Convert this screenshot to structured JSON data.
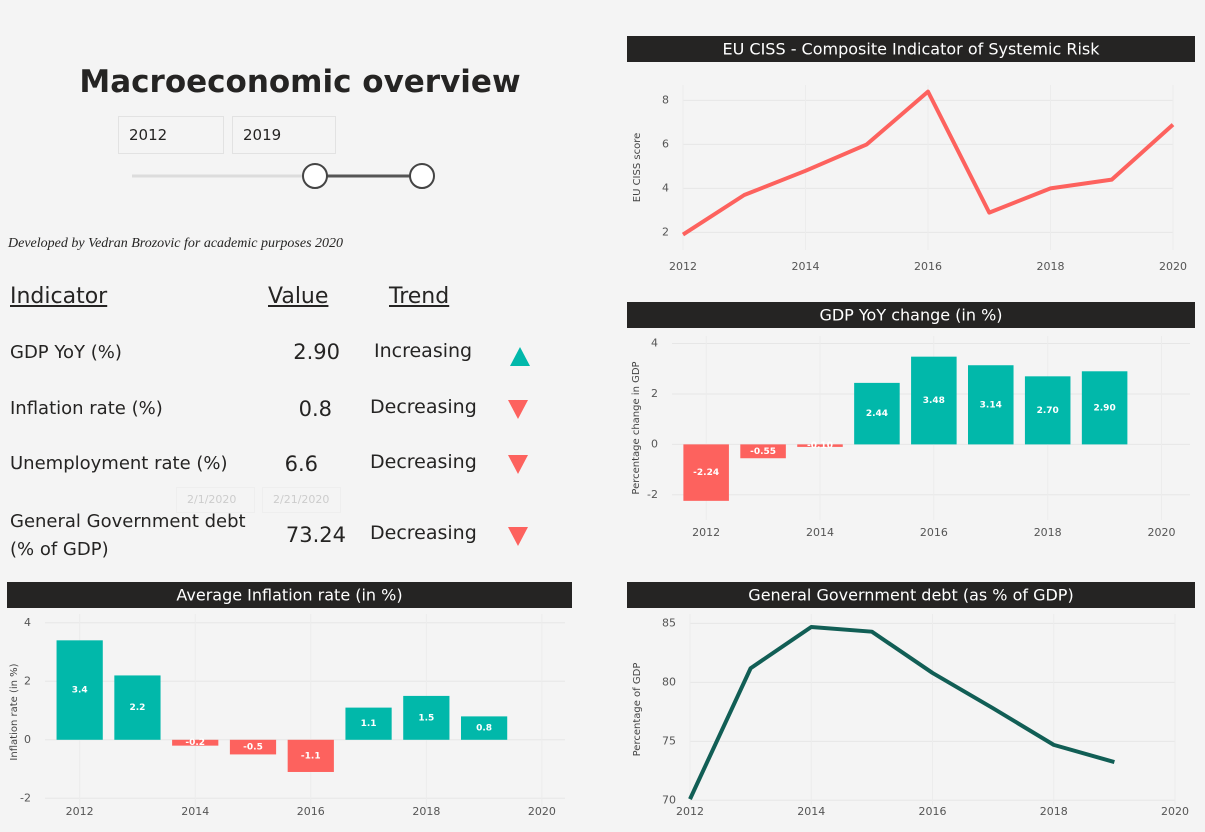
{
  "header": {
    "title": "Macroeconomic overview"
  },
  "slicer": {
    "start": "2012",
    "end": "2019"
  },
  "credit": "Developed by Vedran Brozovic for academic purposes 2020",
  "date_inputs": [
    "2/1/2020",
    "2/21/2020"
  ],
  "table": {
    "headers": [
      "Indicator",
      "Value",
      "Trend"
    ],
    "rows": [
      [
        "GDP YoY (%)",
        "2.90",
        "Increasing"
      ],
      [
        "Inflation rate (%)",
        "0.8",
        "Decreasing"
      ],
      [
        "Unemployment rate (%)",
        "6.6",
        "Decreasing"
      ],
      [
        "General Government debt (% of GDP)",
        "73.24",
        "Decreasing"
      ]
    ]
  },
  "chart_data": [
    {
      "type": "line",
      "title": "EU CISS - Composite Indicator of Systemic Risk",
      "y_label": "EU CISS score",
      "x": [
        2012,
        2013,
        2014,
        2015,
        2016,
        2017,
        2018,
        2019,
        2020
      ],
      "values": [
        1.9,
        3.7,
        4.8,
        6.0,
        8.4,
        2.9,
        4.0,
        4.4,
        6.9
      ],
      "color": "#fd625e",
      "xlim": [
        2012,
        2020
      ],
      "xticks": [
        2012,
        2014,
        2016,
        2018,
        2020
      ],
      "ylim": [
        1.2,
        8.7
      ],
      "yticks": [
        2,
        4,
        6,
        8
      ],
      "grid": true
    },
    {
      "type": "bar",
      "title": "GDP YoY change (in %)",
      "y_label": "Percentage change in GDP",
      "x": [
        2012,
        2013,
        2014,
        2015,
        2016,
        2017,
        2018,
        2019
      ],
      "values": [
        -2.24,
        -0.55,
        -0.1,
        2.44,
        3.48,
        3.14,
        2.7,
        2.9
      ],
      "value_labels": [
        "-2.24",
        "-0.55",
        "-0.10",
        "2.44",
        "3.48",
        "3.14",
        "2.70",
        "2.90"
      ],
      "positive_color": "#01b8aa",
      "negative_color": "#fd625e",
      "xlim": [
        2011.4,
        2020.5
      ],
      "xticks": [
        2012,
        2014,
        2016,
        2018,
        2020
      ],
      "ylim": [
        -3,
        4.3
      ],
      "yticks": [
        -2,
        0,
        2,
        4
      ],
      "grid": true
    },
    {
      "type": "bar",
      "title": "Average Inflation rate (in %)",
      "y_label": "Inflation rate (in %)",
      "x": [
        2012,
        2013,
        2014,
        2015,
        2016,
        2017,
        2018,
        2019
      ],
      "values": [
        3.4,
        2.2,
        -0.2,
        -0.5,
        -1.1,
        1.1,
        1.5,
        0.8
      ],
      "positive_color": "#01b8aa",
      "negative_color": "#fd625e",
      "xlim": [
        2011.4,
        2020.4
      ],
      "xticks": [
        2012,
        2014,
        2016,
        2018,
        2020
      ],
      "ylim": [
        -2.4,
        4.3
      ],
      "yticks": [
        -2,
        0,
        2,
        4
      ],
      "grid": true
    },
    {
      "type": "line",
      "title": "General Government debt (as % of GDP)",
      "y_label": "Percentage of GDP",
      "x": [
        2012,
        2013,
        2014,
        2015,
        2016,
        2017,
        2018,
        2019
      ],
      "values": [
        70.1,
        81.2,
        84.7,
        84.3,
        80.8,
        77.8,
        74.7,
        73.24
      ],
      "color": "#115e55",
      "xlim": [
        2012,
        2020
      ],
      "xticks": [
        2012,
        2014,
        2016,
        2018,
        2020
      ],
      "ylim": [
        69.6,
        85.8
      ],
      "yticks": [
        70,
        75,
        80,
        85
      ],
      "grid": true
    }
  ]
}
